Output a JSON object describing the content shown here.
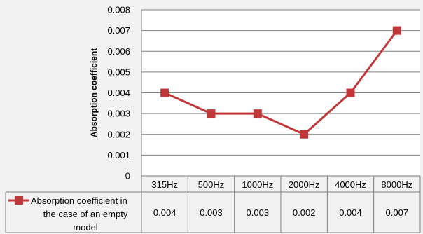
{
  "chart_data": {
    "type": "line",
    "title": "",
    "xlabel": "",
    "ylabel": "Absorption coefficient",
    "categories": [
      "315Hz",
      "500Hz",
      "1000Hz",
      "2000Hz",
      "4000Hz",
      "8000Hz"
    ],
    "series": [
      {
        "name": "Absorption coefficient in the case of an empty model",
        "name_lines": [
          "Absorption coefficient in",
          "the case of an empty",
          "model"
        ],
        "values": [
          0.004,
          0.003,
          0.003,
          0.002,
          0.004,
          0.007
        ],
        "value_labels": [
          "0.004",
          "0.003",
          "0.003",
          "0.002",
          "0.004",
          "0.007"
        ],
        "color": "#c0383a",
        "marker": "square"
      }
    ],
    "ylim": [
      0,
      0.008
    ],
    "yticks": [
      0,
      0.001,
      0.002,
      0.003,
      0.004,
      0.005,
      0.006,
      0.007,
      0.008
    ],
    "ytick_labels": [
      "0",
      "0.001",
      "0.002",
      "0.003",
      "0.004",
      "0.005",
      "0.006",
      "0.007",
      "0.008"
    ],
    "grid": true,
    "data_table": true,
    "legend": "data-table"
  }
}
